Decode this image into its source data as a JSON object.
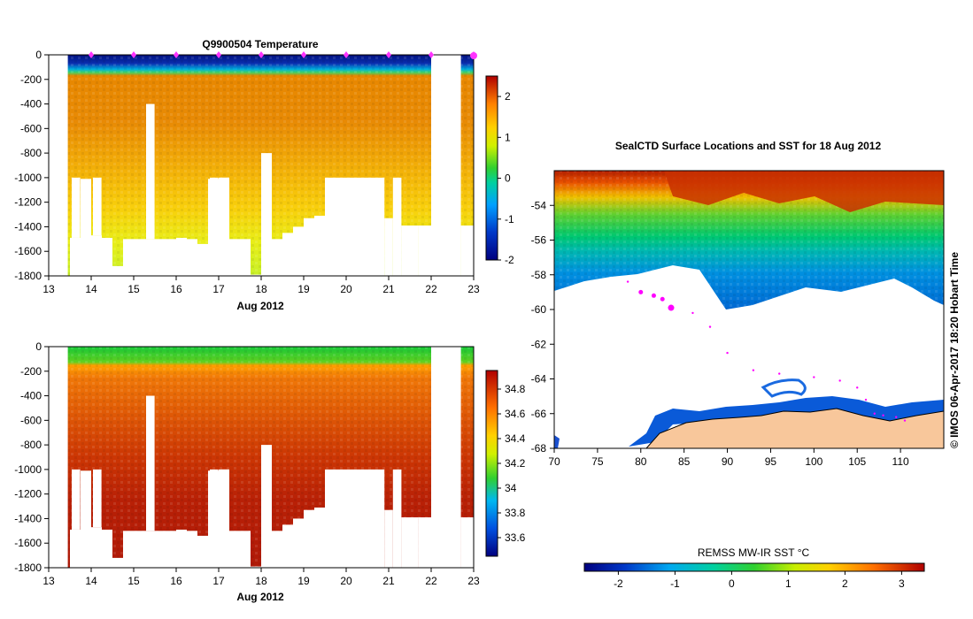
{
  "chart_data": [
    {
      "type": "heatmap",
      "title": "Q9900504  Temperature",
      "xlabel": "Aug 2012",
      "ylabel": "",
      "xlim": [
        13,
        23
      ],
      "ylim": [
        -1800,
        0
      ],
      "x_ticks": [
        "13",
        "14",
        "15",
        "16",
        "17",
        "18",
        "19",
        "20",
        "21",
        "22",
        "23"
      ],
      "y_ticks": [
        "0",
        "-200",
        "-400",
        "-600",
        "-800",
        "-1000",
        "-1200",
        "-1400",
        "-1600",
        "-1800"
      ],
      "colorbar": {
        "min": -2,
        "max": 2.5,
        "ticks": [
          "2",
          "1",
          "0",
          "-1",
          "-2"
        ]
      },
      "profile_marker_days": [
        14.0,
        15.0,
        16.0,
        17.0,
        18.0,
        19.0,
        20.0,
        21.0,
        22.0,
        23.0
      ],
      "profiles": [
        {
          "day": 13.5,
          "max_depth": -1490,
          "gap_from": -1000,
          "gap_to": -1490
        },
        {
          "day": 13.75,
          "max_depth": -1010
        },
        {
          "day": 14.0,
          "max_depth": -1470,
          "gap_from": -1000,
          "gap_to": -1470
        },
        {
          "day": 14.25,
          "max_depth": -1490
        },
        {
          "day": 14.5,
          "max_depth": -1720
        },
        {
          "day": 14.75,
          "max_depth": -1500
        },
        {
          "day": 15.0,
          "max_depth": -1500
        },
        {
          "day": 15.25,
          "max_depth": -1500,
          "gap_from": -400,
          "gap_to": -1500
        },
        {
          "day": 15.5,
          "max_depth": -1500
        },
        {
          "day": 15.75,
          "max_depth": -1500
        },
        {
          "day": 16.0,
          "max_depth": -1490
        },
        {
          "day": 16.25,
          "max_depth": -1500
        },
        {
          "day": 16.5,
          "max_depth": -1540
        },
        {
          "day": 16.75,
          "max_depth": -1010,
          "gap_from": -1000,
          "gap_to": -1500
        },
        {
          "day": 17.0,
          "max_depth": -1000,
          "gap_from": -1000,
          "gap_to": -1500
        },
        {
          "day": 17.25,
          "max_depth": -1500
        },
        {
          "day": 17.5,
          "max_depth": -1500
        },
        {
          "day": 17.75,
          "max_depth": -1790
        },
        {
          "day": 18.0,
          "max_depth": -800
        },
        {
          "day": 18.25,
          "max_depth": -1500
        },
        {
          "day": 18.5,
          "max_depth": -1450
        },
        {
          "day": 18.75,
          "max_depth": -1400
        },
        {
          "day": 19.0,
          "max_depth": -1330
        },
        {
          "day": 19.25,
          "max_depth": -1310
        },
        {
          "day": 19.5,
          "max_depth": -1000
        },
        {
          "day": 20.0,
          "max_depth": -1000
        },
        {
          "day": 20.5,
          "max_depth": -1000
        },
        {
          "day": 20.9,
          "max_depth": -1330
        },
        {
          "day": 21.1,
          "max_depth": -1000
        },
        {
          "day": 21.3,
          "max_depth": -1390
        },
        {
          "day": 21.7,
          "max_depth": -1390
        },
        {
          "day": 22.7,
          "max_depth": -1390
        }
      ]
    },
    {
      "type": "heatmap",
      "title": "",
      "xlabel": "Aug 2012",
      "ylabel": "",
      "xlim": [
        13,
        23
      ],
      "ylim": [
        -1800,
        0
      ],
      "x_ticks": [
        "13",
        "14",
        "15",
        "16",
        "17",
        "18",
        "19",
        "20",
        "21",
        "22",
        "23"
      ],
      "y_ticks": [
        "0",
        "-200",
        "-400",
        "-600",
        "-800",
        "-1000",
        "-1200",
        "-1400",
        "-1600",
        "-1800"
      ],
      "colorbar": {
        "min": 33.45,
        "max": 34.95,
        "ticks": [
          "34.8",
          "34.6",
          "34.4",
          "34.2",
          "34",
          "33.8",
          "33.6"
        ]
      }
    },
    {
      "type": "heatmap",
      "title": "SealCTD Surface Locations and SST for 18 Aug 2012",
      "xlabel": "",
      "ylabel": "",
      "xlim": [
        70,
        115
      ],
      "ylim": [
        -68,
        -52
      ],
      "x_ticks": [
        "70",
        "75",
        "80",
        "85",
        "90",
        "95",
        "100",
        "105",
        "110"
      ],
      "y_ticks": [
        "-54",
        "-56",
        "-58",
        "-60",
        "-62",
        "-64",
        "-66",
        "-68"
      ],
      "side_label": "© IMOS 06-Apr-2017 18:20 Hobart Time",
      "colorbar": {
        "label": "REMSS MW-IR SST °C",
        "min": -2.6,
        "max": 3.4,
        "ticks": [
          "-2",
          "-1",
          "0",
          "1",
          "2",
          "3"
        ]
      },
      "track_points": [
        [
          78.5,
          -58.4
        ],
        [
          80.0,
          -59.0
        ],
        [
          81.5,
          -59.2
        ],
        [
          82.5,
          -59.4
        ],
        [
          83.5,
          -59.9
        ],
        [
          86.0,
          -60.2
        ],
        [
          88.0,
          -61.0
        ],
        [
          90.0,
          -62.5
        ],
        [
          93.0,
          -63.5
        ],
        [
          96.0,
          -63.7
        ],
        [
          100.0,
          -63.9
        ],
        [
          103.0,
          -64.1
        ],
        [
          105.0,
          -64.5
        ],
        [
          106.0,
          -65.2
        ],
        [
          107.0,
          -66.0
        ],
        [
          108.0,
          -66.1
        ],
        [
          109.5,
          -66.2
        ],
        [
          110.5,
          -66.4
        ]
      ]
    }
  ],
  "colors": {
    "text": "#000000",
    "shelf": "#f8c79b",
    "track": "#ff00ff",
    "gap": "#ffffff"
  }
}
